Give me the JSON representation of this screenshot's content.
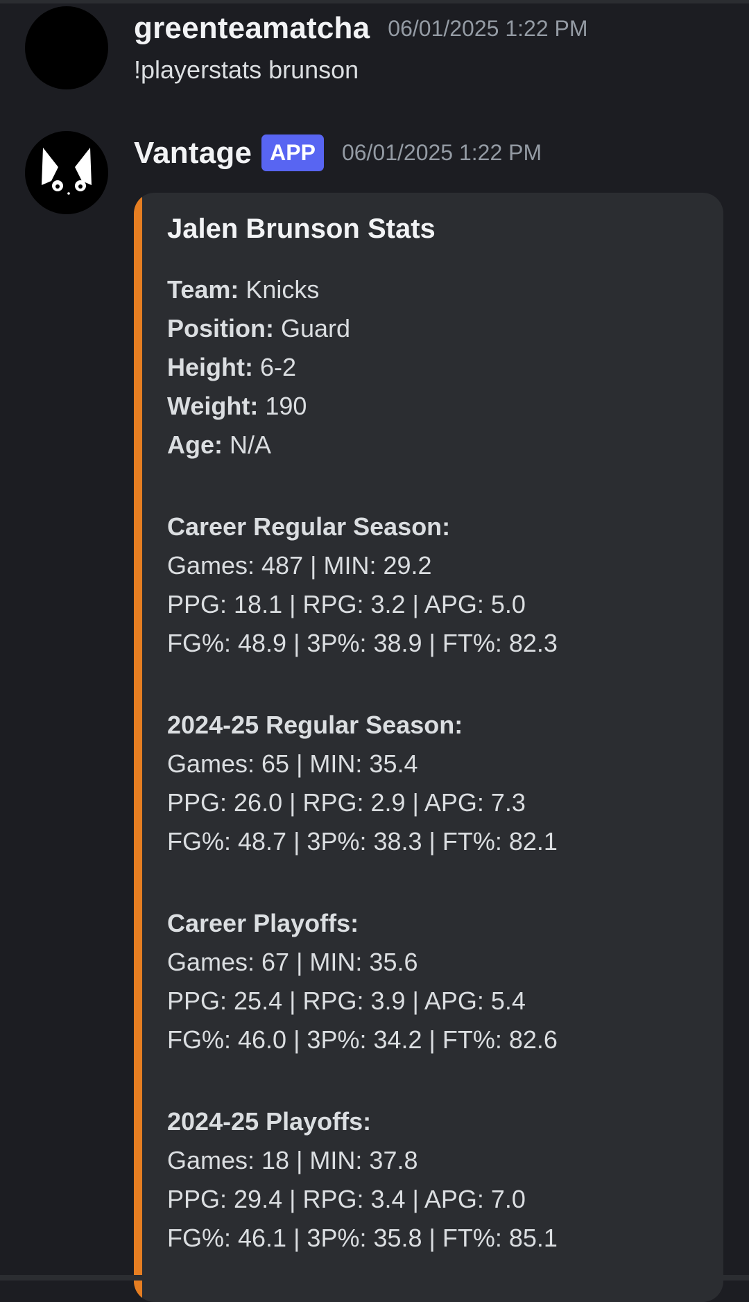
{
  "messages": {
    "user": {
      "username": "greenteamatcha",
      "timestamp": "06/01/2025 1:22 PM",
      "content": "!playerstats brunson"
    },
    "bot": {
      "username": "Vantage",
      "badge": "APP",
      "timestamp": "06/01/2025 1:22 PM",
      "embed": {
        "accent_color": "#e67e22",
        "title": "Jalen Brunson Stats",
        "bio": [
          {
            "label": "Team:",
            "value": "Knicks"
          },
          {
            "label": "Position:",
            "value": "Guard"
          },
          {
            "label": "Height:",
            "value": "6-2"
          },
          {
            "label": "Weight:",
            "value": "190"
          },
          {
            "label": "Age:",
            "value": "N/A"
          }
        ],
        "sections": [
          {
            "title": "Career Regular Season:",
            "lines": [
              "Games: 487 | MIN: 29.2",
              "PPG: 18.1 | RPG: 3.2 | APG: 5.0",
              "FG%: 48.9 | 3P%: 38.9 | FT%: 82.3"
            ]
          },
          {
            "title": "2024-25 Regular Season:",
            "lines": [
              "Games: 65 | MIN: 35.4",
              "PPG: 26.0 | RPG: 2.9 | APG: 7.3",
              "FG%: 48.7 | 3P%: 38.3 | FT%: 82.1"
            ]
          },
          {
            "title": "Career Playoffs:",
            "lines": [
              "Games: 67 | MIN: 35.6",
              "PPG: 25.4 | RPG: 3.9 | APG: 5.4",
              "FG%: 46.0 | 3P%: 34.2 | FT%: 82.6"
            ]
          },
          {
            "title": "2024-25 Playoffs:",
            "lines": [
              "Games: 18 | MIN: 37.8",
              "PPG: 29.4 | RPG: 3.4 | APG: 7.0",
              "FG%: 46.1 | 3P%: 35.8 | FT%: 85.1"
            ]
          }
        ]
      }
    }
  },
  "colors": {
    "background": "#1c1d22",
    "embed_background": "#2b2d31",
    "app_badge": "#5865f2",
    "timestamp": "#949ba4"
  }
}
